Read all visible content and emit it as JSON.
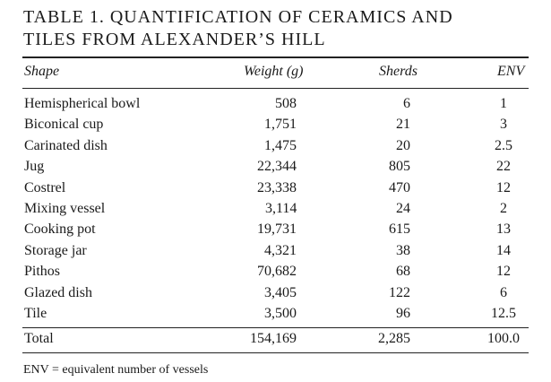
{
  "header": {
    "title_lines": [
      "TABLE 1. QUANTIFICATION OF CERAMICS AND",
      "TILES FROM ALEXANDER’S HILL"
    ]
  },
  "table": {
    "columns": [
      "Shape",
      "Weight (g)",
      "Sherds",
      "ENV"
    ],
    "rows": [
      [
        "Hemispherical bowl",
        "508",
        "6",
        "1"
      ],
      [
        "Biconical cup",
        "1,751",
        "21",
        "3"
      ],
      [
        "Carinated dish",
        "1,475",
        "20",
        "2.5"
      ],
      [
        "Jug",
        "22,344",
        "805",
        "22"
      ],
      [
        "Costrel",
        "23,338",
        "470",
        "12"
      ],
      [
        "Mixing vessel",
        "3,114",
        "24",
        "2"
      ],
      [
        "Cooking pot",
        "19,731",
        "615",
        "13"
      ],
      [
        "Storage jar",
        "4,321",
        "38",
        "14"
      ],
      [
        "Pithos",
        "70,682",
        "68",
        "12"
      ],
      [
        "Glazed dish",
        "3,405",
        "122",
        "6"
      ],
      [
        "Tile",
        "3,500",
        "96",
        "12.5"
      ]
    ],
    "total": [
      "Total",
      "154,169",
      "2,285",
      "100.0"
    ]
  },
  "footnote": "ENV = equivalent number of vessels"
}
